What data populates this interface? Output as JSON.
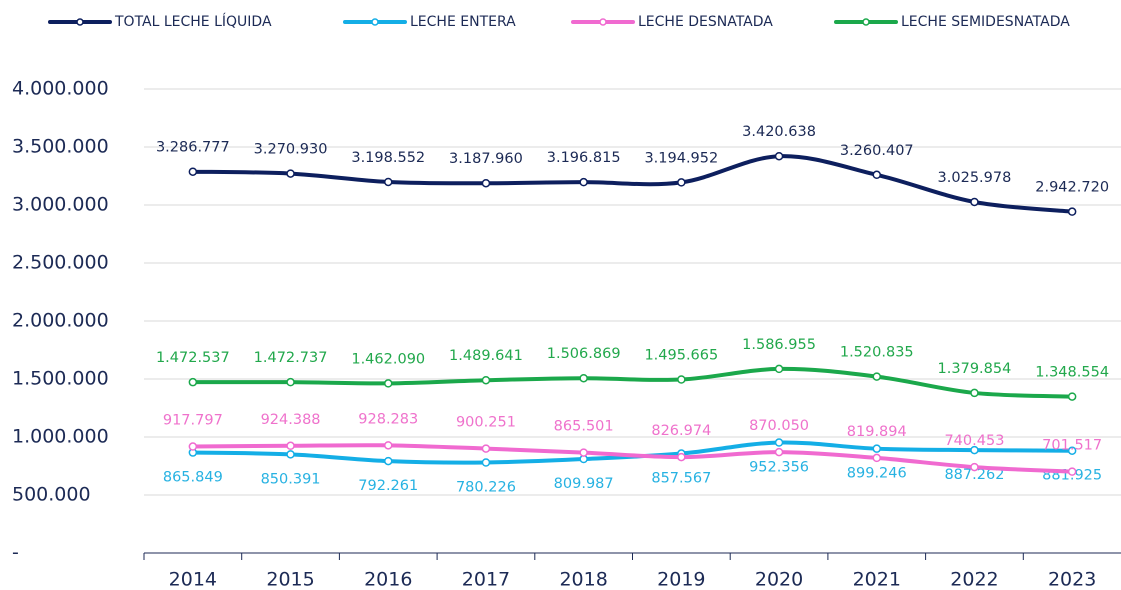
{
  "chart_data": {
    "type": "line",
    "categories": [
      "2014",
      "2015",
      "2016",
      "2017",
      "2018",
      "2019",
      "2020",
      "2021",
      "2022",
      "2023"
    ],
    "series": [
      {
        "name": "TOTAL LECHE LÍQUIDA",
        "color": "#0d1f5e",
        "label_color": "#1c2a55",
        "label_position": "above",
        "values": [
          3286777,
          3270930,
          3198552,
          3187960,
          3196815,
          3194952,
          3420638,
          3260407,
          3025978,
          2942720
        ],
        "value_labels": [
          "3.286.777",
          "3.270.930",
          "3.198.552",
          "3.187.960",
          "3.196.815",
          "3.194.952",
          "3.420.638",
          "3.260.407",
          "3.025.978",
          "2.942.720"
        ]
      },
      {
        "name": "LECHE ENTERA",
        "color": "#14aee6",
        "label_color": "#27b2e2",
        "label_position": "below",
        "values": [
          865849,
          850391,
          792261,
          780226,
          809987,
          857567,
          952356,
          899246,
          887262,
          881925
        ],
        "value_labels": [
          "865.849",
          "850.391",
          "792.261",
          "780.226",
          "809.987",
          "857.567",
          "952.356",
          "899.246",
          "887.262",
          "881.925"
        ]
      },
      {
        "name": "LECHE DESNATADA",
        "color": "#f06ad0",
        "label_color": "#ef72cc",
        "label_position": "above",
        "values": [
          917797,
          924388,
          928283,
          900251,
          865501,
          826974,
          870050,
          819894,
          740453,
          701517
        ],
        "value_labels": [
          "917.797",
          "924.388",
          "928.283",
          "900.251",
          "865.501",
          "826.974",
          "870.050",
          "819.894",
          "740.453",
          "701.517"
        ]
      },
      {
        "name": "LECHE SEMIDESNATADA",
        "color": "#1ba84b",
        "label_color": "#22a84c",
        "label_position": "above",
        "values": [
          1472537,
          1472737,
          1462090,
          1489641,
          1506869,
          1495665,
          1586955,
          1520835,
          1379854,
          1348554
        ],
        "value_labels": [
          "1.472.537",
          "1.472.737",
          "1.462.090",
          "1.489.641",
          "1.506.869",
          "1.495.665",
          "1.586.955",
          "1.520.835",
          "1.379.854",
          "1.348.554"
        ]
      }
    ],
    "ylim": [
      0,
      4000000
    ],
    "yticks": [
      {
        "value": 0,
        "label": "-"
      },
      {
        "value": 500000,
        "label": "500.000"
      },
      {
        "value": 1000000,
        "label": "1.000.000"
      },
      {
        "value": 1500000,
        "label": "1.500.000"
      },
      {
        "value": 2000000,
        "label": "2.000.000"
      },
      {
        "value": 2500000,
        "label": "2.500.000"
      },
      {
        "value": 3000000,
        "label": "3.000.000"
      },
      {
        "value": 3500000,
        "label": "3.500.000"
      },
      {
        "value": 4000000,
        "label": "4.000.000"
      }
    ],
    "grid": true,
    "legend": "top",
    "smooth": true
  }
}
